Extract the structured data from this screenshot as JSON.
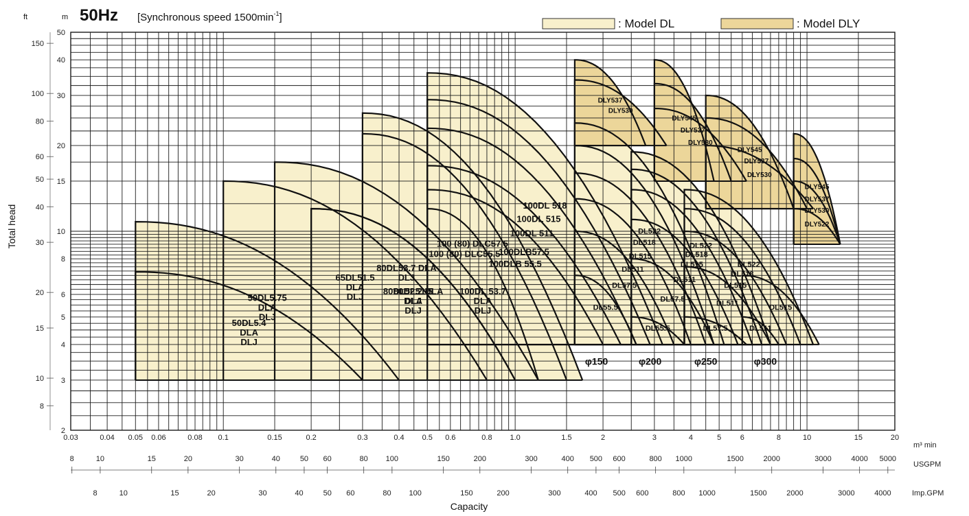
{
  "header": {
    "frequency": "50Hz",
    "speed_note": "[Synchronous speed 1500min",
    "speed_exp": "-1",
    "speed_close": "]",
    "unit_m": "m",
    "unit_ft": "ft",
    "legend_dl": ": Model DL",
    "legend_dly": ": Model DLY"
  },
  "colors": {
    "fill_dl": "#f8f0cc",
    "fill_dly": "#ecd69a",
    "grid": "#1a1a1a",
    "curve": "#111111"
  },
  "chart_data": {
    "type": "area",
    "title": "50Hz [Synchronous speed 1500min-1]",
    "xlabel": "Capacity",
    "ylabel": "Total head",
    "x_scale": "log",
    "y_scale": "log",
    "xlim": [
      0.03,
      20
    ],
    "ylim": [
      2,
      50
    ],
    "x_unit": "m³/min",
    "y_unit": "m",
    "grid": true,
    "x_ticks": [
      {
        "v": 0.03,
        "t": "0.03"
      },
      {
        "v": 0.04,
        "t": "0.04"
      },
      {
        "v": 0.05,
        "t": "0.05"
      },
      {
        "v": 0.06,
        "t": "0.06"
      },
      {
        "v": 0.08,
        "t": "0.08"
      },
      {
        "v": 0.1,
        "t": "0.1"
      },
      {
        "v": 0.15,
        "t": "0.15"
      },
      {
        "v": 0.2,
        "t": "0.2"
      },
      {
        "v": 0.3,
        "t": "0.3"
      },
      {
        "v": 0.4,
        "t": "0.4"
      },
      {
        "v": 0.5,
        "t": "0.5"
      },
      {
        "v": 0.6,
        "t": "0.6"
      },
      {
        "v": 0.8,
        "t": "0.8"
      },
      {
        "v": 1,
        "t": "1.0"
      },
      {
        "v": 1.5,
        "t": "1.5"
      },
      {
        "v": 2,
        "t": "2"
      },
      {
        "v": 3,
        "t": "3"
      },
      {
        "v": 4,
        "t": "4"
      },
      {
        "v": 5,
        "t": "5"
      },
      {
        "v": 6,
        "t": "6"
      },
      {
        "v": 8,
        "t": "8"
      },
      {
        "v": 10,
        "t": "10"
      },
      {
        "v": 15,
        "t": "15"
      },
      {
        "v": 20,
        "t": "20"
      }
    ],
    "x_unit_label": "m³ min",
    "usgpm_label": "USGPM",
    "usgpm_ticks": [
      "8",
      "10",
      "15",
      "20",
      "30",
      "40",
      "50",
      "60",
      "80",
      "100",
      "150",
      "200",
      "300",
      "400",
      "500",
      "600",
      "800",
      "1000",
      "1500",
      "2000",
      "3000",
      "4000",
      "5000"
    ],
    "impgpm_label": "Imp.GPM",
    "impgpm_ticks": [
      "8",
      "10",
      "15",
      "20",
      "30",
      "40",
      "50",
      "60",
      "80",
      "100",
      "150",
      "200",
      "300",
      "400",
      "500",
      "600",
      "800",
      "1000",
      "1500",
      "2000",
      "3000",
      "4000"
    ],
    "y_ticks_m": [
      "2",
      "3",
      "4",
      "5",
      "6",
      "8",
      "10",
      "15",
      "20",
      "30",
      "40",
      "50"
    ],
    "y_ticks_ft": [
      "8",
      "10",
      "15",
      "20",
      "30",
      "40",
      "50",
      "60",
      "80",
      "100",
      "150"
    ],
    "models_dl": [
      {
        "name": "50DL5.4",
        "text": [
          "50DL5.4",
          "DLA",
          "DLJ"
        ],
        "qmin": 0.05,
        "qmax": 0.3,
        "hmin": 3,
        "hmax": 7.2
      },
      {
        "name": "50DL5.75",
        "text": [
          "50DL5.75",
          "DLA",
          "DLJ"
        ],
        "qmin": 0.05,
        "qmax": 0.4,
        "hmin": 3,
        "hmax": 10.8
      },
      {
        "name": "65DL51.5",
        "text": [
          "65DL51.5",
          "DLA",
          "DLJ"
        ],
        "qmin": 0.1,
        "qmax": 0.8,
        "hmin": 3,
        "hmax": 15
      },
      {
        "name": "80DL51.5",
        "text": [
          "80DL51.5",
          "DLA",
          "DLJ"
        ],
        "qmin": 0.2,
        "qmax": 1.0,
        "hmin": 3,
        "hmax": 12
      },
      {
        "name": "80DL52.2",
        "text": [
          "80DL52.2 DLA",
          "DLJ"
        ],
        "qmin": 0.2,
        "qmax": 1.0,
        "hmin": 3,
        "hmax": 12
      },
      {
        "name": "80DL53.7",
        "text": [
          "80DL53.7 DLA",
          "DLJ"
        ],
        "qmin": 0.15,
        "qmax": 1.2,
        "hmin": 3,
        "hmax": 17.5
      },
      {
        "name": "100(80)DLC55.5",
        "text": [
          "100 (80) DLC55.5"
        ],
        "qmin": 0.3,
        "qmax": 1.5,
        "hmin": 3,
        "hmax": 22
      },
      {
        "name": "100(80)DLC57.5",
        "text": [
          "100 (80) DLC57.5"
        ],
        "qmin": 0.3,
        "qmax": 1.7,
        "hmin": 3,
        "hmax": 26
      },
      {
        "name": "100DL53.7",
        "text": [
          "100DL 53.7",
          "DLA",
          "DLJ"
        ],
        "qmin": 0.5,
        "qmax": 1.2,
        "hmin": 3,
        "hmax": 12
      },
      {
        "name": "100DLB55.5",
        "text": [
          "100DLB 55.5"
        ],
        "qmin": 0.5,
        "qmax": 2.0,
        "hmin": 4,
        "hmax": 14
      },
      {
        "name": "100DLB57.5",
        "text": [
          "100DLB57.5"
        ],
        "qmin": 0.5,
        "qmax": 2.3,
        "hmin": 4,
        "hmax": 17
      },
      {
        "name": "100DL511",
        "text": [
          "100DL 511"
        ],
        "qmin": 0.5,
        "qmax": 2.6,
        "hmin": 4,
        "hmax": 23
      },
      {
        "name": "100DL515",
        "text": [
          "100DL 515"
        ],
        "qmin": 0.5,
        "qmax": 2.9,
        "hmin": 4,
        "hmax": 29
      },
      {
        "name": "100DL518",
        "text": [
          "100DL 518"
        ],
        "qmin": 0.5,
        "qmax": 3.2,
        "hmin": 4,
        "hmax": 36
      },
      {
        "name": "150DL55.5",
        "text": [
          "DL55.5"
        ],
        "qmin": 1.6,
        "qmax": 2.6,
        "hmin": 4,
        "hmax": 7
      },
      {
        "name": "150DL57.5",
        "text": [
          "DL57.5"
        ],
        "qmin": 1.6,
        "qmax": 3.5,
        "hmin": 4,
        "hmax": 10
      },
      {
        "name": "150DL511",
        "text": [
          "DL511"
        ],
        "qmin": 1.6,
        "qmax": 4.0,
        "hmin": 4,
        "hmax": 13
      },
      {
        "name": "150DL515",
        "text": [
          "DL515"
        ],
        "qmin": 1.6,
        "qmax": 4.5,
        "hmin": 4,
        "hmax": 16
      },
      {
        "name": "150DL518",
        "text": [
          "DL518"
        ],
        "qmin": 1.6,
        "qmax": 4.8,
        "hmin": 4,
        "hmax": 20
      },
      {
        "name": "150DL522",
        "text": [
          "DL522"
        ],
        "qmin": 1.6,
        "qmax": 5.2,
        "hmin": 4,
        "hmax": 24
      },
      {
        "name": "200DL55.5",
        "text": [
          "DL55.5"
        ],
        "qmin": 2.5,
        "qmax": 3.8,
        "hmin": 4,
        "hmax": 5
      },
      {
        "name": "200DL57.5",
        "text": [
          "DL57.5"
        ],
        "qmin": 2.5,
        "qmax": 4.8,
        "hmin": 4,
        "hmax": 8
      },
      {
        "name": "200DL511",
        "text": [
          "DL511"
        ],
        "qmin": 2.5,
        "qmax": 5.8,
        "hmin": 4,
        "hmax": 11
      },
      {
        "name": "200DL515",
        "text": [
          "DL515"
        ],
        "qmin": 2.5,
        "qmax": 6.5,
        "hmin": 4,
        "hmax": 14
      },
      {
        "name": "200DL518",
        "text": [
          "DL518"
        ],
        "qmin": 2.5,
        "qmax": 7,
        "hmin": 4,
        "hmax": 16.5
      },
      {
        "name": "200DL522",
        "text": [
          "DL522"
        ],
        "qmin": 2.5,
        "qmax": 7.5,
        "hmin": 4,
        "hmax": 19
      },
      {
        "name": "250DL57.5",
        "text": [
          "DL57.5"
        ],
        "qmin": 3.8,
        "qmax": 6.2,
        "hmin": 4,
        "hmax": 5
      },
      {
        "name": "250DL511",
        "text": [
          "DL511"
        ],
        "qmin": 3.8,
        "qmax": 7.5,
        "hmin": 4,
        "hmax": 7.5
      },
      {
        "name": "250DL515",
        "text": [
          "DL515"
        ],
        "qmin": 3.8,
        "qmax": 8.5,
        "hmin": 4,
        "hmax": 10
      },
      {
        "name": "250DL518",
        "text": [
          "DL518"
        ],
        "qmin": 3.8,
        "qmax": 9.5,
        "hmin": 4,
        "hmax": 12
      },
      {
        "name": "250DL522",
        "text": [
          "DL522"
        ],
        "qmin": 3.8,
        "qmax": 10.5,
        "hmin": 4,
        "hmax": 14
      },
      {
        "name": "300DL511",
        "text": [
          "DL511"
        ],
        "qmin": 6,
        "qmax": 8,
        "hmin": 4,
        "hmax": 5
      },
      {
        "name": "300DL515",
        "text": [
          "DL515"
        ],
        "qmin": 6,
        "qmax": 11,
        "hmin": 4,
        "hmax": 7
      }
    ],
    "models_dly": [
      {
        "name": "150DLY537",
        "text": [
          "DLY537"
        ],
        "qmin": 1.6,
        "qmax": 2.8,
        "hmin": 20,
        "hmax": 40
      },
      {
        "name": "150DLY530",
        "text": [
          "DLY530"
        ],
        "qmin": 1.6,
        "qmax": 3.3,
        "hmin": 20,
        "hmax": 34
      },
      {
        "name": "200DLY545",
        "text": [
          "DLY545"
        ],
        "qmin": 3,
        "qmax": 4.8,
        "hmin": 15,
        "hmax": 40
      },
      {
        "name": "200DLY537",
        "text": [
          "DLY537"
        ],
        "qmin": 3,
        "qmax": 5.5,
        "hmin": 15,
        "hmax": 33
      },
      {
        "name": "200DLY530",
        "text": [
          "DLY530"
        ],
        "qmin": 3,
        "qmax": 6.2,
        "hmin": 15,
        "hmax": 27
      },
      {
        "name": "250DLY545",
        "text": [
          "DLY545"
        ],
        "qmin": 4.5,
        "qmax": 9,
        "hmin": 12,
        "hmax": 30
      },
      {
        "name": "250DLY537",
        "text": [
          "DLY537"
        ],
        "qmin": 4.5,
        "qmax": 10,
        "hmin": 12,
        "hmax": 25
      },
      {
        "name": "250DLY530",
        "text": [
          "DLY530"
        ],
        "qmin": 4.5,
        "qmax": 10.5,
        "hmin": 12,
        "hmax": 20
      },
      {
        "name": "300DLY545",
        "text": [
          "DLY545"
        ],
        "qmin": 9,
        "qmax": 13,
        "hmin": 9,
        "hmax": 22
      },
      {
        "name": "300DLY537",
        "text": [
          "DLY537"
        ],
        "qmin": 9,
        "qmax": 13,
        "hmin": 9,
        "hmax": 18
      },
      {
        "name": "300DLY530",
        "text": [
          "DLY530"
        ],
        "qmin": 9,
        "qmax": 13,
        "hmin": 9,
        "hmax": 15
      },
      {
        "name": "300DLY522",
        "text": [
          "DLY522"
        ],
        "qmin": 9,
        "qmax": 13,
        "hmin": 9,
        "hmax": 12
      }
    ],
    "size_labels": [
      "φ150",
      "φ200",
      "φ250",
      "φ300"
    ]
  }
}
